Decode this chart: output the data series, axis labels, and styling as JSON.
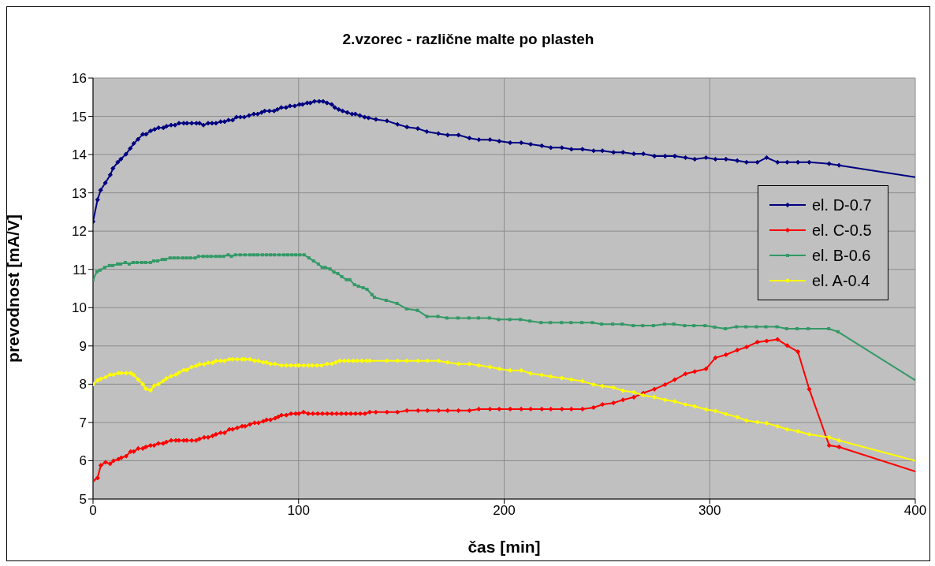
{
  "chart_data": {
    "type": "line",
    "title": "2.vzorec - različne malte po plasteh",
    "xlabel": "čas [min]",
    "ylabel": "prevodnost [mA/V]",
    "xlim": [
      0,
      400
    ],
    "xticks": [
      0,
      100,
      200,
      300,
      400
    ],
    "ylim": [
      5,
      16
    ],
    "yticks": [
      5,
      6,
      7,
      8,
      9,
      10,
      11,
      12,
      13,
      14,
      15,
      16
    ],
    "grid": true,
    "legend": "right",
    "marker": "diamond",
    "line_style": "solid",
    "series": [
      {
        "name": "el. D-0.7",
        "color": "#000080",
        "x": [
          0,
          2.2,
          3.7,
          6,
          8.4,
          9.7,
          12,
          13.5,
          16,
          18.1,
          19.8,
          21.9,
          24.2,
          25.8,
          28,
          30,
          31.9,
          34.2,
          35.7,
          38,
          39.9,
          41.8,
          44.1,
          45.7,
          48,
          50.3,
          51.8,
          53.7,
          56,
          57.9,
          59.8,
          62.1,
          64,
          65.9,
          67.9,
          69.8,
          71.7,
          73.6,
          75.9,
          78.2,
          80.1,
          82,
          83.5,
          85.8,
          88.1,
          89.7,
          91.6,
          93.9,
          95.8,
          98.1,
          100.4,
          101.9,
          104.2,
          105.7,
          107.7,
          110,
          111.9,
          113.8,
          116.1,
          117.6,
          119.5,
          121.4,
          123.7,
          126,
          127.6,
          129.8,
          132.1,
          134,
          137.6,
          143,
          148.1,
          152.7,
          158,
          162.4,
          168,
          172.5,
          177.8,
          183.1,
          187.7,
          193.1,
          197.6,
          202.9,
          208.3,
          212.9,
          218.3,
          222.7,
          228.1,
          232.7,
          238.1,
          243.5,
          247.8,
          253.2,
          257.8,
          263.1,
          267.7,
          273.1,
          278.3,
          283,
          288.2,
          292.7,
          298.2,
          302.8,
          307.9,
          313.4,
          317.9,
          323.2,
          327.7,
          333,
          337.7,
          342.9,
          348.4,
          358.1,
          362.9,
          400
        ],
        "values": [
          12.25,
          12.82,
          13.07,
          13.26,
          13.47,
          13.64,
          13.8,
          13.88,
          14.01,
          14.16,
          14.29,
          14.4,
          14.53,
          14.53,
          14.62,
          14.66,
          14.7,
          14.7,
          14.74,
          14.77,
          14.77,
          14.82,
          14.82,
          14.82,
          14.82,
          14.82,
          14.82,
          14.77,
          14.82,
          14.82,
          14.82,
          14.86,
          14.86,
          14.9,
          14.9,
          14.98,
          14.98,
          14.98,
          15.02,
          15.06,
          15.06,
          15.1,
          15.14,
          15.14,
          15.14,
          15.18,
          15.23,
          15.23,
          15.27,
          15.27,
          15.31,
          15.31,
          15.35,
          15.35,
          15.39,
          15.39,
          15.39,
          15.35,
          15.31,
          15.23,
          15.18,
          15.14,
          15.1,
          15.06,
          15.06,
          15.02,
          14.98,
          14.96,
          14.92,
          14.88,
          14.79,
          14.72,
          14.68,
          14.6,
          14.55,
          14.51,
          14.51,
          14.43,
          14.39,
          14.39,
          14.35,
          14.31,
          14.31,
          14.27,
          14.23,
          14.18,
          14.18,
          14.14,
          14.14,
          14.1,
          14.1,
          14.06,
          14.06,
          14.02,
          14.02,
          13.96,
          13.96,
          13.96,
          13.92,
          13.88,
          13.92,
          13.88,
          13.88,
          13.84,
          13.8,
          13.8,
          13.92,
          13.8,
          13.8,
          13.8,
          13.8,
          13.76,
          13.72,
          13.41
        ]
      },
      {
        "name": "el. C-0.5",
        "color": "#ff0000",
        "x": [
          0,
          2.2,
          3.8,
          6.1,
          8.3,
          10,
          12.3,
          13.8,
          16.1,
          18.3,
          19.8,
          22,
          24.2,
          25.7,
          28,
          29.7,
          31.8,
          34.1,
          35.7,
          38,
          40.3,
          41.8,
          44.1,
          45.6,
          48,
          50.2,
          51.8,
          54.1,
          56,
          58.2,
          59.8,
          62.1,
          64,
          66.3,
          67.9,
          70.2,
          72.5,
          74,
          76.3,
          78.6,
          80.5,
          82.8,
          84.4,
          86.3,
          88.6,
          90.1,
          91.7,
          94,
          96.3,
          98.6,
          100.1,
          102.4,
          104.7,
          107,
          109.3,
          111.6,
          113.9,
          116.2,
          118.5,
          120.8,
          123.1,
          125.4,
          127.7,
          130,
          132.3,
          134.6,
          137.6,
          143,
          148.1,
          152.7,
          158.1,
          162.7,
          168.1,
          172.5,
          177.8,
          183.1,
          187.7,
          193.1,
          197.6,
          202.9,
          208.3,
          212.9,
          218.3,
          222.7,
          228.1,
          232.7,
          238.1,
          243.5,
          247.8,
          253.2,
          257.8,
          263.1,
          267.7,
          273.1,
          278.3,
          283,
          288.2,
          292.7,
          298.2,
          302.8,
          307.9,
          313.4,
          317.9,
          323.2,
          327.7,
          333,
          337.7,
          342.9,
          348.4,
          358.1,
          362.9,
          400
        ],
        "values": [
          5.48,
          5.55,
          5.88,
          5.96,
          5.92,
          6,
          6.04,
          6.08,
          6.12,
          6.24,
          6.24,
          6.32,
          6.32,
          6.36,
          6.4,
          6.4,
          6.45,
          6.45,
          6.49,
          6.53,
          6.53,
          6.53,
          6.53,
          6.53,
          6.53,
          6.53,
          6.57,
          6.61,
          6.61,
          6.65,
          6.69,
          6.73,
          6.73,
          6.82,
          6.82,
          6.86,
          6.9,
          6.9,
          6.95,
          6.99,
          6.99,
          7.03,
          7.07,
          7.07,
          7.11,
          7.15,
          7.19,
          7.19,
          7.23,
          7.23,
          7.23,
          7.27,
          7.23,
          7.23,
          7.23,
          7.23,
          7.23,
          7.23,
          7.23,
          7.23,
          7.23,
          7.23,
          7.23,
          7.23,
          7.23,
          7.27,
          7.27,
          7.27,
          7.27,
          7.31,
          7.31,
          7.31,
          7.31,
          7.31,
          7.31,
          7.31,
          7.35,
          7.35,
          7.35,
          7.35,
          7.35,
          7.35,
          7.35,
          7.35,
          7.35,
          7.35,
          7.35,
          7.39,
          7.47,
          7.51,
          7.59,
          7.66,
          7.77,
          7.87,
          7.99,
          8.12,
          8.27,
          8.33,
          8.4,
          8.69,
          8.77,
          8.89,
          8.97,
          9.1,
          9.13,
          9.17,
          9.01,
          8.85,
          7.87,
          6.4,
          6.36,
          5.72
        ]
      },
      {
        "name": "el. B-0.6",
        "color": "#339966",
        "marker": "square",
        "x": [
          0,
          1.9,
          3.4,
          5.7,
          8,
          9.6,
          11.9,
          13.4,
          15.7,
          17.6,
          19.5,
          21.4,
          23.7,
          25.6,
          27.9,
          29.5,
          31.4,
          33.7,
          35.2,
          37.5,
          39.4,
          41.3,
          43.6,
          45.5,
          47.4,
          49.7,
          51.3,
          53.6,
          55.5,
          57.4,
          59.7,
          61.6,
          63.5,
          65.8,
          67.3,
          69.3,
          71.6,
          73.9,
          76.3,
          78.2,
          80.1,
          82.4,
          84.4,
          86.3,
          88.2,
          90.5,
          92.8,
          94.7,
          96.7,
          98.6,
          100.6,
          102.7,
          105,
          107.3,
          109.6,
          111.5,
          113,
          115.3,
          117.2,
          119.1,
          121,
          123.3,
          124.9,
          127.2,
          129.1,
          131.4,
          133.3,
          135.7,
          136.9,
          142.6,
          147.9,
          152.5,
          157.8,
          162.4,
          167.8,
          172.1,
          177.5,
          182.9,
          187.5,
          192.8,
          197.3,
          202.7,
          207.9,
          212.5,
          217.9,
          222.5,
          227.9,
          232.5,
          237.8,
          242.9,
          247.4,
          252.8,
          257.4,
          262.8,
          267.4,
          272.6,
          278,
          282.5,
          287.8,
          292.3,
          297.7,
          302.4,
          307.6,
          313,
          317.6,
          322.7,
          327.3,
          332.7,
          337.4,
          342.5,
          347.9,
          357.9,
          362.4,
          400
        ],
        "values": [
          10.73,
          10.94,
          10.98,
          11.05,
          11.1,
          11.1,
          11.14,
          11.14,
          11.18,
          11.14,
          11.18,
          11.18,
          11.18,
          11.18,
          11.18,
          11.22,
          11.22,
          11.26,
          11.26,
          11.3,
          11.3,
          11.3,
          11.3,
          11.3,
          11.3,
          11.3,
          11.34,
          11.34,
          11.34,
          11.34,
          11.34,
          11.34,
          11.34,
          11.38,
          11.34,
          11.38,
          11.38,
          11.38,
          11.38,
          11.38,
          11.38,
          11.38,
          11.38,
          11.38,
          11.38,
          11.38,
          11.38,
          11.38,
          11.38,
          11.38,
          11.38,
          11.38,
          11.3,
          11.22,
          11.14,
          11.05,
          11.05,
          11.01,
          10.93,
          10.89,
          10.81,
          10.73,
          10.73,
          10.6,
          10.56,
          10.52,
          10.48,
          10.34,
          10.27,
          10.19,
          10.11,
          9.97,
          9.93,
          9.77,
          9.77,
          9.73,
          9.73,
          9.73,
          9.73,
          9.73,
          9.69,
          9.69,
          9.69,
          9.65,
          9.61,
          9.61,
          9.61,
          9.61,
          9.61,
          9.61,
          9.57,
          9.57,
          9.57,
          9.53,
          9.53,
          9.53,
          9.57,
          9.57,
          9.53,
          9.53,
          9.53,
          9.49,
          9.45,
          9.5,
          9.5,
          9.5,
          9.5,
          9.5,
          9.45,
          9.45,
          9.45,
          9.45,
          9.37,
          8.1
        ]
      },
      {
        "name": "el. A-0.4",
        "color": "#ffff00",
        "x": [
          0,
          2.2,
          3.8,
          6.1,
          8.3,
          10,
          12.3,
          13.8,
          16.1,
          18.3,
          19.8,
          22,
          24.2,
          25.7,
          28,
          29.7,
          31.8,
          34.1,
          35.7,
          38,
          40.3,
          41.8,
          44.1,
          45.6,
          48,
          50.2,
          51.8,
          54.1,
          56,
          58.2,
          59.8,
          62.1,
          64,
          66.3,
          67.9,
          70.2,
          72.5,
          74,
          76.3,
          78.6,
          80.5,
          82.8,
          84.4,
          86.3,
          88.6,
          91.7,
          94,
          96.3,
          98.6,
          100.1,
          102.4,
          104.7,
          106.6,
          108.9,
          111.2,
          113.9,
          116.2,
          118.1,
          120,
          122.3,
          124.3,
          126.6,
          128.5,
          130.8,
          133.1,
          134.6,
          143,
          148.1,
          152.7,
          158.1,
          162.7,
          168.1,
          172.5,
          177.8,
          183.1,
          187.7,
          193.1,
          197.6,
          202.9,
          208.3,
          212.9,
          218.3,
          222.7,
          228.1,
          232.7,
          238.1,
          243.5,
          247.8,
          253.2,
          257.8,
          263.1,
          267.7,
          273.1,
          278.3,
          283,
          288.2,
          292.7,
          298.2,
          302.8,
          307.9,
          313.4,
          317.9,
          323.2,
          327.7,
          333,
          337.7,
          342.9,
          348.4,
          358.1,
          362.9,
          400
        ],
        "values": [
          8,
          8.1,
          8.14,
          8.18,
          8.25,
          8.25,
          8.29,
          8.29,
          8.29,
          8.29,
          8.24,
          8.12,
          8,
          7.88,
          7.84,
          7.96,
          8,
          8.08,
          8.15,
          8.21,
          8.25,
          8.3,
          8.37,
          8.37,
          8.45,
          8.48,
          8.52,
          8.52,
          8.56,
          8.56,
          8.61,
          8.61,
          8.61,
          8.65,
          8.65,
          8.65,
          8.65,
          8.65,
          8.65,
          8.61,
          8.61,
          8.57,
          8.57,
          8.53,
          8.53,
          8.49,
          8.49,
          8.49,
          8.49,
          8.49,
          8.49,
          8.49,
          8.49,
          8.49,
          8.49,
          8.53,
          8.53,
          8.57,
          8.61,
          8.61,
          8.61,
          8.61,
          8.61,
          8.61,
          8.61,
          8.61,
          8.61,
          8.61,
          8.61,
          8.61,
          8.61,
          8.61,
          8.57,
          8.53,
          8.53,
          8.49,
          8.45,
          8.4,
          8.36,
          8.36,
          8.28,
          8.24,
          8.2,
          8.16,
          8.12,
          8.08,
          7.99,
          7.95,
          7.91,
          7.83,
          7.79,
          7.71,
          7.66,
          7.59,
          7.55,
          7.47,
          7.42,
          7.34,
          7.3,
          7.22,
          7.14,
          7.05,
          7.01,
          6.98,
          6.9,
          6.82,
          6.77,
          6.69,
          6.61,
          6.53,
          6
        ]
      }
    ]
  }
}
